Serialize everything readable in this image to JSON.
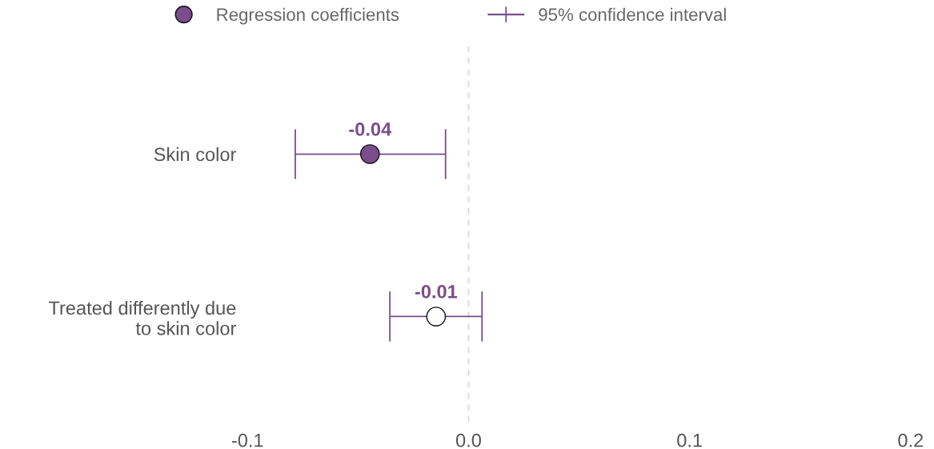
{
  "chart_data": {
    "type": "scatter",
    "orientation": "horizontal",
    "categories": [
      "Skin color",
      "Treated differently due\nto skin color"
    ],
    "series": [
      {
        "name": "Regression coefficients",
        "color": "#7b4d8c",
        "colors": [
          "#7b4d8c",
          "#ffffff"
        ],
        "values": [
          -0.0446,
          -0.0147
        ],
        "errors": [
          [
            -0.0784,
            -0.0104
          ],
          [
            -0.0356,
            0.0061
          ]
        ],
        "value_labels": [
          "-0.04",
          "-0.01"
        ],
        "marker": "circle"
      }
    ],
    "annotations": [
      "95% confidence interval"
    ],
    "xlim": [
      -0.1,
      0.2
    ],
    "xticks": [
      -0.1,
      {
        "value": 0,
        "label": "0.0"
      },
      0.1,
      0.2
    ],
    "ref_lines": [
      {
        "axis": "x",
        "value": 0,
        "color": "#d9d9d9",
        "line_style": "dashed"
      }
    ],
    "grid": false,
    "legend": "top"
  }
}
